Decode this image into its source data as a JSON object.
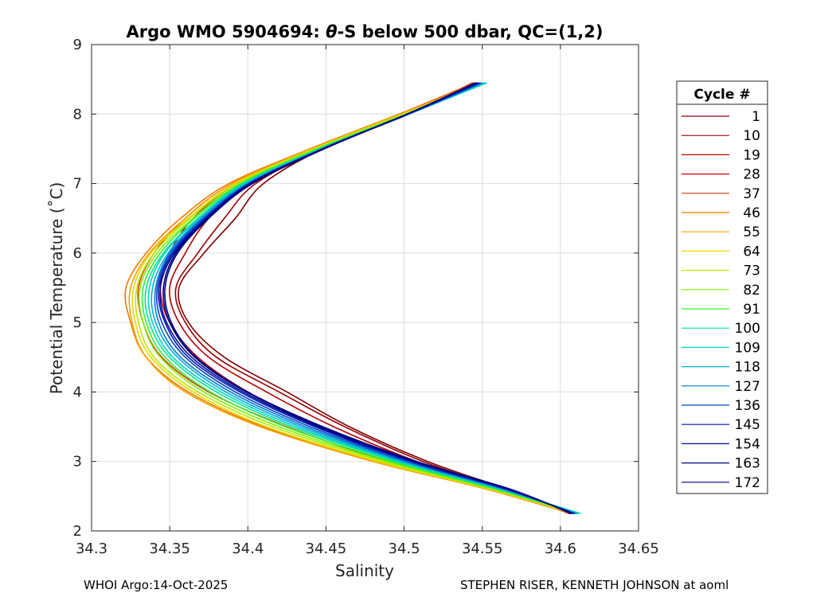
{
  "chart_data": {
    "type": "line",
    "title_prefix": "Argo WMO 5904694: ",
    "title_symbol": "θ",
    "title_suffix": "-S below 500 dbar,  QC=(1,2)",
    "xlabel": "Salinity",
    "ylabel": "Potential Temperature (˚C)",
    "xlim": [
      34.3,
      34.65
    ],
    "ylim": [
      2,
      9
    ],
    "xticks": [
      "34.3",
      "34.35",
      "34.4",
      "34.45",
      "34.5",
      "34.55",
      "34.6",
      "34.65"
    ],
    "yticks": [
      "2",
      "3",
      "4",
      "5",
      "6",
      "7",
      "8",
      "9"
    ],
    "grid": true,
    "legend_title": "Cycle #",
    "legend_position": "outside-right",
    "series": [
      {
        "name": "1",
        "color": "#7f0000",
        "temperature": [
          2.25,
          2.6,
          3.0,
          3.5,
          4.0,
          4.5,
          5.0,
          5.5,
          6.0,
          6.5,
          7.0,
          7.5,
          8.0,
          8.45
        ],
        "salinity": [
          34.607,
          34.566,
          34.515,
          34.465,
          34.425,
          34.385,
          34.362,
          34.356,
          34.372,
          34.392,
          34.41,
          34.448,
          34.503,
          34.545
        ]
      },
      {
        "name": "10",
        "color": "#950000",
        "temperature": [
          2.25,
          2.6,
          3.0,
          3.5,
          4.0,
          4.5,
          5.0,
          5.5,
          6.0,
          6.5,
          7.0,
          7.5,
          8.0,
          8.45
        ],
        "salinity": [
          34.606,
          34.564,
          34.512,
          34.462,
          34.42,
          34.38,
          34.36,
          34.354,
          34.368,
          34.385,
          34.405,
          34.447,
          34.502,
          34.544
        ]
      },
      {
        "name": "19",
        "color": "#b40000",
        "temperature": [
          2.25,
          2.6,
          3.0,
          3.5,
          4.0,
          4.5,
          5.0,
          5.5,
          6.0,
          6.5,
          7.0,
          7.5,
          8.0,
          8.45
        ],
        "salinity": [
          34.606,
          34.562,
          34.508,
          34.455,
          34.412,
          34.375,
          34.356,
          34.35,
          34.36,
          34.375,
          34.4,
          34.446,
          34.502,
          34.546
        ]
      },
      {
        "name": "28",
        "color": "#d20000",
        "temperature": [
          2.25,
          2.6,
          3.0,
          3.5,
          4.0,
          4.5,
          5.0,
          5.5,
          6.0,
          6.5,
          7.0,
          7.5,
          8.0,
          8.45
        ],
        "salinity": [
          34.606,
          34.56,
          34.5,
          34.445,
          34.4,
          34.368,
          34.35,
          34.344,
          34.35,
          34.365,
          34.393,
          34.443,
          34.5,
          34.547
        ]
      },
      {
        "name": "37",
        "color": "#e63a00",
        "temperature": [
          2.25,
          2.6,
          3.0,
          3.5,
          4.0,
          4.5,
          5.0,
          5.5,
          6.0,
          6.5,
          7.0,
          7.5,
          8.0,
          8.45
        ],
        "salinity": [
          34.607,
          34.556,
          34.49,
          34.425,
          34.375,
          34.345,
          34.333,
          34.33,
          34.34,
          34.36,
          34.39,
          34.44,
          34.497,
          34.545
        ]
      },
      {
        "name": "46",
        "color": "#f07a00",
        "temperature": [
          2.25,
          2.6,
          3.0,
          3.5,
          4.0,
          4.5,
          5.0,
          5.5,
          6.0,
          6.5,
          7.0,
          7.5,
          8.0,
          8.45
        ],
        "salinity": [
          34.607,
          34.553,
          34.482,
          34.41,
          34.362,
          34.335,
          34.325,
          34.322,
          34.335,
          34.357,
          34.388,
          34.44,
          34.497,
          34.547
        ]
      },
      {
        "name": "55",
        "color": "#f5a300",
        "temperature": [
          2.25,
          2.6,
          3.0,
          3.5,
          4.0,
          4.5,
          5.0,
          5.5,
          6.0,
          6.5,
          7.0,
          7.5,
          8.0,
          8.45
        ],
        "salinity": [
          34.608,
          34.553,
          34.48,
          34.408,
          34.36,
          34.335,
          34.326,
          34.325,
          34.337,
          34.36,
          34.39,
          34.441,
          34.498,
          34.548
        ]
      },
      {
        "name": "64",
        "color": "#e8d800",
        "temperature": [
          2.25,
          2.6,
          3.0,
          3.5,
          4.0,
          4.5,
          5.0,
          5.5,
          6.0,
          6.5,
          7.0,
          7.5,
          8.0,
          8.45
        ],
        "salinity": [
          34.609,
          34.555,
          34.483,
          34.412,
          34.365,
          34.338,
          34.328,
          34.327,
          34.338,
          34.362,
          34.392,
          34.442,
          34.499,
          34.549
        ]
      },
      {
        "name": "73",
        "color": "#b8e800",
        "temperature": [
          2.25,
          2.6,
          3.0,
          3.5,
          4.0,
          4.5,
          5.0,
          5.5,
          6.0,
          6.5,
          7.0,
          7.5,
          8.0,
          8.45
        ],
        "salinity": [
          34.61,
          34.556,
          34.486,
          34.416,
          34.368,
          34.34,
          34.33,
          34.329,
          34.34,
          34.363,
          34.393,
          34.443,
          34.5,
          34.55
        ]
      },
      {
        "name": "82",
        "color": "#7ff000",
        "temperature": [
          2.25,
          2.6,
          3.0,
          3.5,
          4.0,
          4.5,
          5.0,
          5.5,
          6.0,
          6.5,
          7.0,
          7.5,
          8.0,
          8.45
        ],
        "salinity": [
          34.611,
          34.558,
          34.489,
          34.42,
          34.372,
          34.344,
          34.333,
          34.331,
          34.342,
          34.365,
          34.395,
          34.444,
          34.501,
          34.551
        ]
      },
      {
        "name": "91",
        "color": "#32f032",
        "temperature": [
          2.25,
          2.6,
          3.0,
          3.5,
          4.0,
          4.5,
          5.0,
          5.5,
          6.0,
          6.5,
          7.0,
          7.5,
          8.0,
          8.45
        ],
        "salinity": [
          34.612,
          34.559,
          34.492,
          34.424,
          34.376,
          34.347,
          34.335,
          34.333,
          34.344,
          34.366,
          34.396,
          34.445,
          34.502,
          34.552
        ]
      },
      {
        "name": "100",
        "color": "#00e68c",
        "temperature": [
          2.25,
          2.6,
          3.0,
          3.5,
          4.0,
          4.5,
          5.0,
          5.5,
          6.0,
          6.5,
          7.0,
          7.5,
          8.0,
          8.45
        ],
        "salinity": [
          34.613,
          34.561,
          34.495,
          34.428,
          34.38,
          34.35,
          34.337,
          34.335,
          34.346,
          34.368,
          34.397,
          34.446,
          34.503,
          34.553
        ]
      },
      {
        "name": "109",
        "color": "#00d2c8",
        "temperature": [
          2.25,
          2.6,
          3.0,
          3.5,
          4.0,
          4.5,
          5.0,
          5.5,
          6.0,
          6.5,
          7.0,
          7.5,
          8.0,
          8.45
        ],
        "salinity": [
          34.612,
          34.562,
          34.497,
          34.431,
          34.383,
          34.352,
          34.339,
          34.337,
          34.347,
          34.369,
          34.398,
          34.447,
          34.503,
          34.552
        ]
      },
      {
        "name": "118",
        "color": "#00aadc",
        "temperature": [
          2.25,
          2.6,
          3.0,
          3.5,
          4.0,
          4.5,
          5.0,
          5.5,
          6.0,
          6.5,
          7.0,
          7.5,
          8.0,
          8.45
        ],
        "salinity": [
          34.611,
          34.563,
          34.499,
          34.434,
          34.386,
          34.355,
          34.341,
          34.339,
          34.349,
          34.37,
          34.399,
          34.447,
          34.503,
          34.551
        ]
      },
      {
        "name": "127",
        "color": "#0078d2",
        "temperature": [
          2.25,
          2.6,
          3.0,
          3.5,
          4.0,
          4.5,
          5.0,
          5.5,
          6.0,
          6.5,
          7.0,
          7.5,
          8.0,
          8.45
        ],
        "salinity": [
          34.61,
          34.564,
          34.501,
          34.437,
          34.389,
          34.357,
          34.343,
          34.341,
          34.35,
          34.371,
          34.4,
          34.448,
          34.503,
          34.55
        ]
      },
      {
        "name": "136",
        "color": "#0046c8",
        "temperature": [
          2.25,
          2.6,
          3.0,
          3.5,
          4.0,
          4.5,
          5.0,
          5.5,
          6.0,
          6.5,
          7.0,
          7.5,
          8.0,
          8.45
        ],
        "salinity": [
          34.609,
          34.565,
          34.503,
          34.44,
          34.392,
          34.36,
          34.345,
          34.342,
          34.351,
          34.372,
          34.401,
          34.448,
          34.503,
          34.549
        ]
      },
      {
        "name": "145",
        "color": "#0014b4",
        "temperature": [
          2.25,
          2.6,
          3.0,
          3.5,
          4.0,
          4.5,
          5.0,
          5.5,
          6.0,
          6.5,
          7.0,
          7.5,
          8.0,
          8.45
        ],
        "salinity": [
          34.609,
          34.566,
          34.505,
          34.443,
          34.395,
          34.362,
          34.347,
          34.343,
          34.352,
          34.373,
          34.401,
          34.448,
          34.502,
          34.548
        ]
      },
      {
        "name": "154",
        "color": "#000a96",
        "temperature": [
          2.25,
          2.6,
          3.0,
          3.5,
          4.0,
          4.5,
          5.0,
          5.5,
          6.0,
          6.5,
          7.0,
          7.5,
          8.0,
          8.45
        ],
        "salinity": [
          34.608,
          34.567,
          34.506,
          34.445,
          34.397,
          34.364,
          34.348,
          34.344,
          34.353,
          34.374,
          34.402,
          34.448,
          34.502,
          34.547
        ]
      },
      {
        "name": "163",
        "color": "#000078",
        "temperature": [
          2.25,
          2.6,
          3.0,
          3.5,
          4.0,
          4.5,
          5.0,
          5.5,
          6.0,
          6.5,
          7.0,
          7.5,
          8.0,
          8.45
        ],
        "salinity": [
          34.607,
          34.568,
          34.507,
          34.447,
          34.399,
          34.366,
          34.35,
          34.346,
          34.354,
          34.374,
          34.402,
          34.448,
          34.502,
          34.546
        ]
      },
      {
        "name": "172",
        "color": "#000082",
        "temperature": [
          2.25,
          2.6,
          3.0,
          3.5,
          4.0,
          4.5,
          5.0,
          5.5,
          6.0,
          6.5,
          7.0,
          7.5,
          8.0,
          8.45
        ],
        "salinity": [
          34.607,
          34.568,
          34.508,
          34.448,
          34.4,
          34.367,
          34.351,
          34.347,
          34.355,
          34.375,
          34.403,
          34.449,
          34.502,
          34.546
        ]
      }
    ]
  },
  "footer": {
    "left": "WHOI Argo:14-Oct-2025",
    "right": "STEPHEN RISER, KENNETH JOHNSON at aoml"
  }
}
